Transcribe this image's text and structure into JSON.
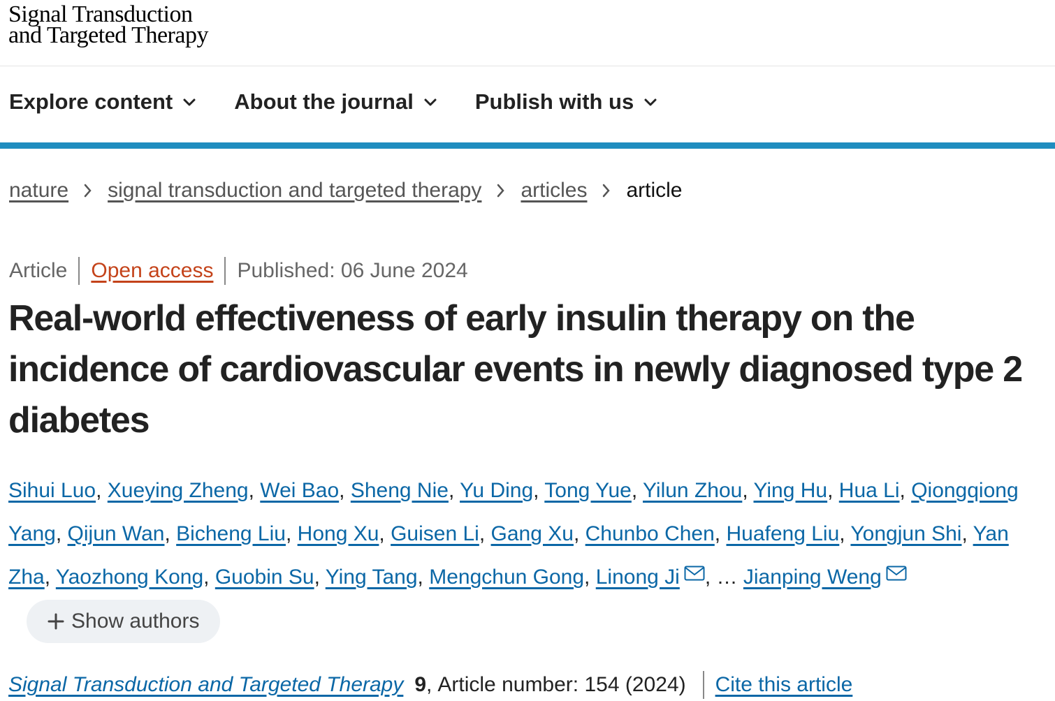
{
  "header": {
    "logo_line1": "Signal Transduction",
    "logo_line2": "and Targeted Therapy"
  },
  "nav": {
    "items": [
      "Explore content",
      "About the journal",
      "Publish with us"
    ]
  },
  "breadcrumbs": [
    "nature",
    "signal transduction and targeted therapy",
    "articles",
    "article"
  ],
  "meta": {
    "type": "Article",
    "access": "Open access",
    "published": "Published: 06 June 2024"
  },
  "title": "Real-world effectiveness of early insulin therapy on the incidence of cardiovascular events in newly diagnosed type 2 diabetes",
  "authors": {
    "separator": ",",
    "list": [
      {
        "name": "Sihui Luo",
        "corresponding": false
      },
      {
        "name": "Xueying Zheng",
        "corresponding": false
      },
      {
        "name": "Wei Bao",
        "corresponding": false
      },
      {
        "name": "Sheng Nie",
        "corresponding": false
      },
      {
        "name": "Yu Ding",
        "corresponding": false
      },
      {
        "name": "Tong Yue",
        "corresponding": false
      },
      {
        "name": "Yilun Zhou",
        "corresponding": false
      },
      {
        "name": "Ying Hu",
        "corresponding": false
      },
      {
        "name": "Hua Li",
        "corresponding": false
      },
      {
        "name": "Qiongqiong Yang",
        "corresponding": false
      },
      {
        "name": "Qijun Wan",
        "corresponding": false
      },
      {
        "name": "Bicheng Liu",
        "corresponding": false
      },
      {
        "name": "Hong Xu",
        "corresponding": false
      },
      {
        "name": "Guisen Li",
        "corresponding": false
      },
      {
        "name": "Gang Xu",
        "corresponding": false
      },
      {
        "name": "Chunbo Chen",
        "corresponding": false
      },
      {
        "name": "Huafeng Liu",
        "corresponding": false
      },
      {
        "name": "Yongjun Shi",
        "corresponding": false
      },
      {
        "name": "Yan Zha",
        "corresponding": false
      },
      {
        "name": "Yaozhong Kong",
        "corresponding": false
      },
      {
        "name": "Guobin Su",
        "corresponding": false
      },
      {
        "name": "Ying Tang",
        "corresponding": false
      },
      {
        "name": "Mengchun Gong",
        "corresponding": false
      },
      {
        "name": "Linong Ji",
        "corresponding": true
      }
    ],
    "ellipsis": "…",
    "last": {
      "name": "Jianping Weng",
      "corresponding": true
    },
    "show_button": "Show authors"
  },
  "citation": {
    "journal": "Signal Transduction and Targeted Therapy",
    "volume": "9",
    "separator": ",",
    "article_number": "Article number: 154 (2024)",
    "cite": "Cite this article"
  }
}
